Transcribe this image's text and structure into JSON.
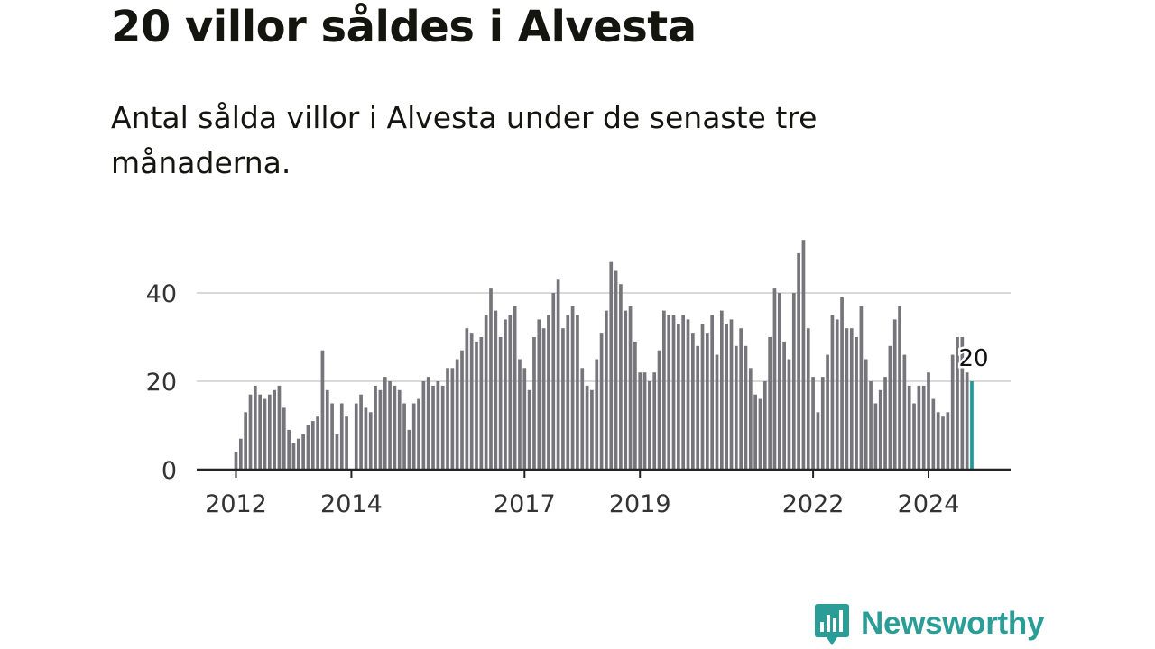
{
  "title": "20 villor såldes i Alvesta",
  "subtitle": "Antal sålda villor i Alvesta under de senaste tre månaderna.",
  "brand": {
    "name": "Newsworthy",
    "icon": "bar-chart-speech-bubble-icon"
  },
  "colors": {
    "bar": "#76757b",
    "highlight": "#1d9a9a",
    "grid": "#d9d9d9",
    "axis": "#222222",
    "brand": "#2a9d97"
  },
  "chart_data": {
    "type": "bar",
    "title": "",
    "xlabel": "",
    "ylabel": "",
    "ylim": [
      0,
      52
    ],
    "yticks": [
      0,
      20,
      40
    ],
    "xticks": [
      "2012",
      "2014",
      "2017",
      "2019",
      "2022",
      "2024"
    ],
    "grid": true,
    "frequency": "monthly",
    "start": "2012-01",
    "end": "2024-10",
    "values": [
      4,
      7,
      13,
      17,
      19,
      17,
      16,
      17,
      18,
      19,
      14,
      9,
      6,
      7,
      8,
      10,
      11,
      12,
      27,
      18,
      15,
      8,
      15,
      12,
      null,
      15,
      17,
      14,
      13,
      19,
      18,
      21,
      20,
      19,
      18,
      15,
      9,
      15,
      16,
      20,
      21,
      19,
      20,
      19,
      23,
      23,
      25,
      27,
      32,
      31,
      29,
      30,
      35,
      41,
      36,
      30,
      34,
      35,
      37,
      25,
      23,
      18,
      30,
      34,
      32,
      35,
      40,
      43,
      32,
      35,
      37,
      35,
      23,
      19,
      18,
      25,
      31,
      36,
      47,
      45,
      42,
      36,
      37,
      29,
      22,
      22,
      20,
      22,
      27,
      36,
      35,
      35,
      33,
      35,
      34,
      31,
      28,
      33,
      31,
      35,
      26,
      36,
      33,
      34,
      28,
      32,
      28,
      23,
      17,
      16,
      20,
      30,
      41,
      40,
      29,
      25,
      40,
      49,
      52,
      32,
      21,
      13,
      21,
      26,
      35,
      34,
      39,
      32,
      32,
      30,
      37,
      25,
      20,
      15,
      18,
      21,
      28,
      34,
      37,
      26,
      19,
      15,
      19,
      19,
      22,
      16,
      13,
      12,
      13,
      26,
      30,
      30,
      22,
      20
    ],
    "highlight": {
      "date": "2024-10",
      "value": 20,
      "label": "20"
    }
  }
}
